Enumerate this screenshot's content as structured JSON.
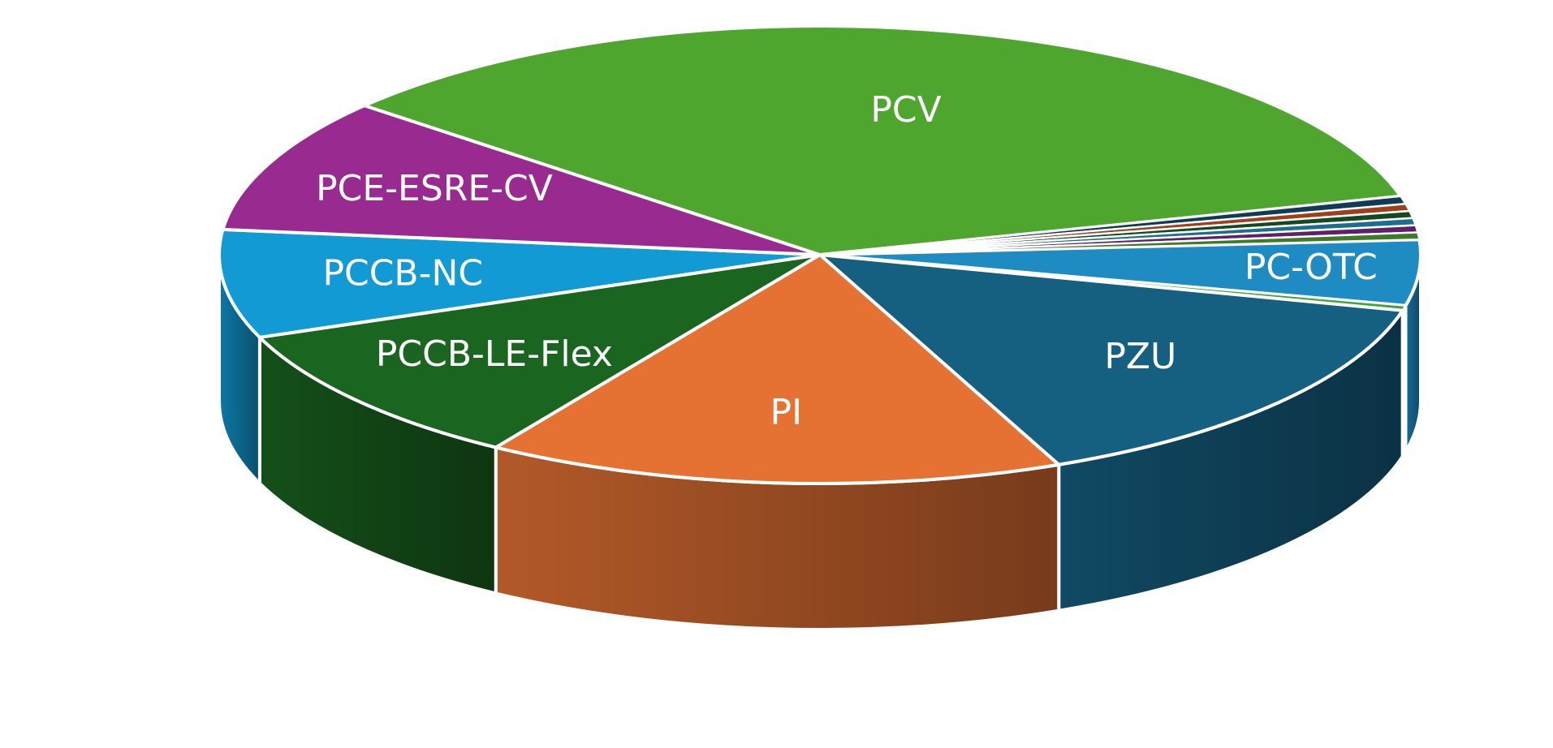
{
  "chart_data": {
    "type": "pie",
    "title": "",
    "slices": [
      {
        "label": "PC-OTC",
        "value": 4.6,
        "color": "#1E8BC3"
      },
      {
        "label": "",
        "value": 0.35,
        "color": "#3DA63A"
      },
      {
        "label": "PZU",
        "value": 14.5,
        "color": "#155F80"
      },
      {
        "label": "PI",
        "value": 15.5,
        "color": "#E57233"
      },
      {
        "label": "PCCB-LE-Flex",
        "value": 10.0,
        "color": "#1A6620"
      },
      {
        "label": "PCCB-NC",
        "value": 7.6,
        "color": "#119AD4"
      },
      {
        "label": "PCE-ESRE-CV",
        "value": 9.5,
        "color": "#992A8F"
      },
      {
        "label": "PCV",
        "value": 34.4,
        "color": "#4EA62F"
      },
      {
        "label": "",
        "value": 0.55,
        "color": "#0F3B55"
      },
      {
        "label": "",
        "value": 0.5,
        "color": "#A0401A"
      },
      {
        "label": "",
        "value": 0.5,
        "color": "#134A22"
      },
      {
        "label": "",
        "value": 0.5,
        "color": "#1B6E8E"
      },
      {
        "label": "",
        "value": 0.5,
        "color": "#5E1F6E"
      },
      {
        "label": "",
        "value": 0.5,
        "color": "#3F7A28"
      }
    ],
    "legend": "none",
    "data_labels": "inside"
  }
}
